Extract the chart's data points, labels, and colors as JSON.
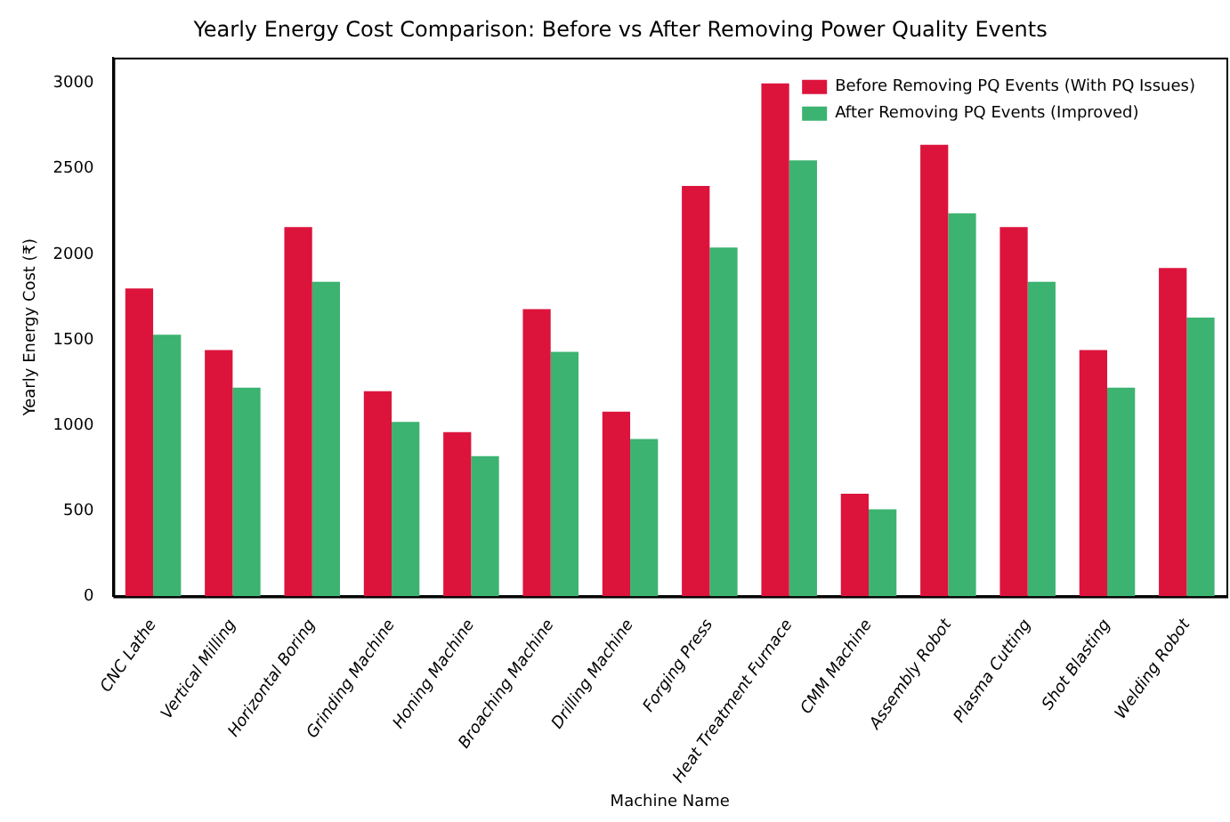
{
  "chart_data": {
    "type": "bar",
    "title": "Yearly Energy Cost Comparison: Before vs After Removing Power Quality Events",
    "xlabel": "Machine Name",
    "ylabel": "Yearly Energy Cost (₹)",
    "categories": [
      "CNC Lathe",
      "Vertical Milling",
      "Horizontal Boring",
      "Grinding Machine",
      "Honing Machine",
      "Broaching Machine",
      "Drilling Machine",
      "Forging Press",
      "Heat Treatment Furnace",
      "CMM Machine",
      "Assembly Robot",
      "Plasma Cutting",
      "Shot Blasting",
      "Welding Robot"
    ],
    "series": [
      {
        "name": "Before Removing PQ Events (With PQ Issues)",
        "color": "#dc143c",
        "values": [
          1800,
          1440,
          2160,
          1200,
          960,
          1680,
          1080,
          2400,
          3000,
          600,
          2640,
          2160,
          1440,
          1920
        ]
      },
      {
        "name": "After Removing PQ Events (Improved)",
        "color": "#3cb371",
        "values": [
          1530,
          1220,
          1840,
          1020,
          820,
          1430,
          920,
          2040,
          2550,
          510,
          2240,
          1840,
          1220,
          1630
        ]
      }
    ],
    "ylim": [
      0,
      3150
    ],
    "yticks": [
      0,
      500,
      1000,
      1500,
      2000,
      2500,
      3000
    ],
    "grid": false,
    "legend": "top right"
  }
}
